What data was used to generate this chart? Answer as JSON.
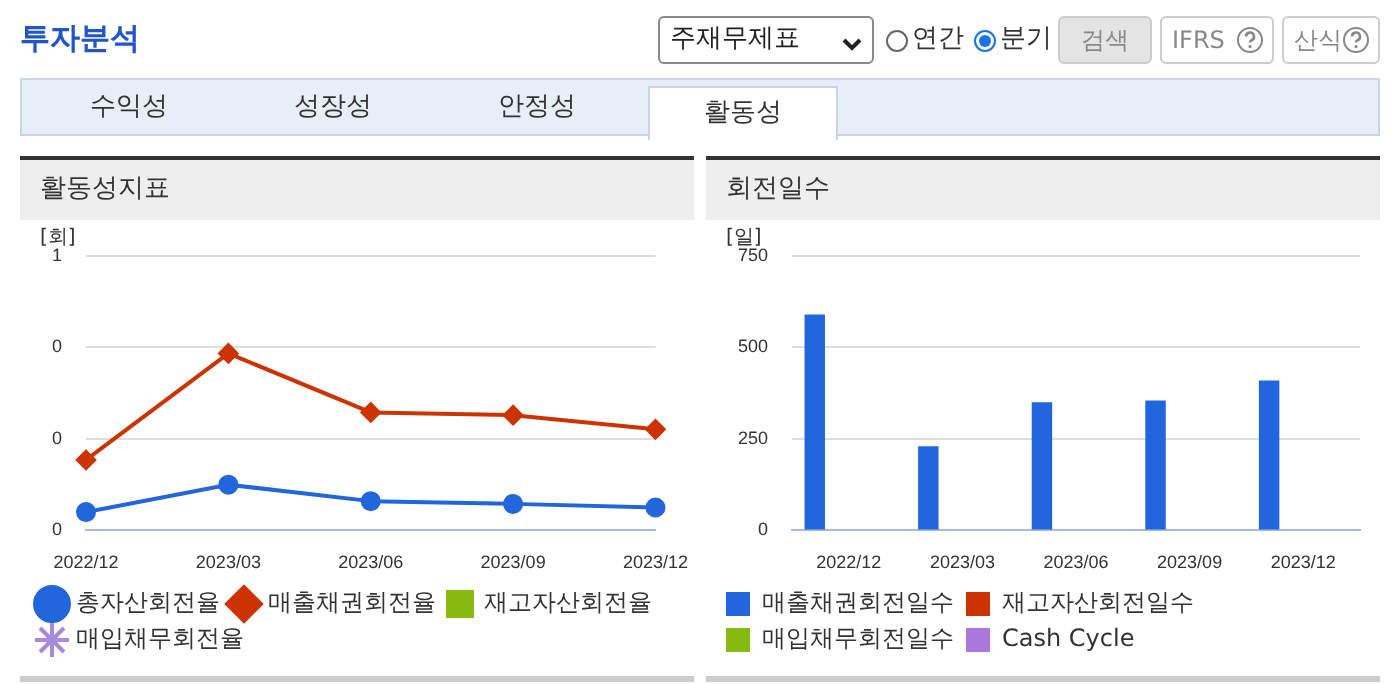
{
  "chart_data": [
    {
      "type": "line",
      "title": "활동성지표",
      "ylabel": "[회]",
      "categories": [
        "2022/12",
        "2023/03",
        "2023/06",
        "2023/09",
        "2023/12"
      ],
      "series": [
        {
          "name": "총자산회전율",
          "color": "#2266dd",
          "marker": "circle",
          "values": [
            0.04,
            0.1,
            0.064,
            0.058,
            0.05
          ]
        },
        {
          "name": "매출채권회전율",
          "color": "#cc3300",
          "marker": "diamond",
          "values": [
            0.154,
            0.387,
            0.258,
            0.252,
            0.221
          ]
        },
        {
          "name": "재고자산회전율",
          "color": "#88bb11",
          "marker": "square",
          "values": [
            null,
            null,
            null,
            null,
            null
          ]
        },
        {
          "name": "매입채무회전율",
          "color": "#aa88dd",
          "marker": "star",
          "values": [
            null,
            null,
            null,
            null,
            null
          ]
        }
      ],
      "ylim": [
        0,
        0.6
      ],
      "yticks": [
        0,
        {
          "value": 0.2,
          "label": "0"
        },
        {
          "value": 0.4,
          "label": "0"
        },
        {
          "value": 0.6,
          "label": "1"
        }
      ],
      "grid": "y",
      "legend": "bottom",
      "annotations": [
        "투자분석",
        "주재무제표",
        "연간",
        "분기",
        "검색",
        "IFRS",
        "산식",
        "수익성",
        "성장성",
        "안정성",
        "활동성"
      ]
    },
    {
      "type": "bar",
      "title": "회전일수",
      "ylabel": "[일]",
      "categories": [
        "2022/12",
        "2023/03",
        "2023/06",
        "2023/09",
        "2023/12"
      ],
      "series": [
        {
          "name": "매출채권회전일수",
          "color": "#2266dd",
          "values": [
            590,
            230,
            350,
            355,
            410
          ]
        },
        {
          "name": "재고자산회전일수",
          "color": "#cc3300",
          "values": [
            null,
            null,
            null,
            null,
            null
          ]
        },
        {
          "name": "매입채무회전일수",
          "color": "#88bb11",
          "values": [
            null,
            null,
            null,
            null,
            null
          ]
        },
        {
          "name": "Cash Cycle",
          "color": "#aa77dd",
          "values": [
            null,
            null,
            null,
            null,
            null
          ]
        }
      ],
      "ylim": [
        0,
        750
      ],
      "yticks": [
        0,
        250,
        500,
        750
      ],
      "grid": "y",
      "legend": "bottom"
    }
  ]
}
